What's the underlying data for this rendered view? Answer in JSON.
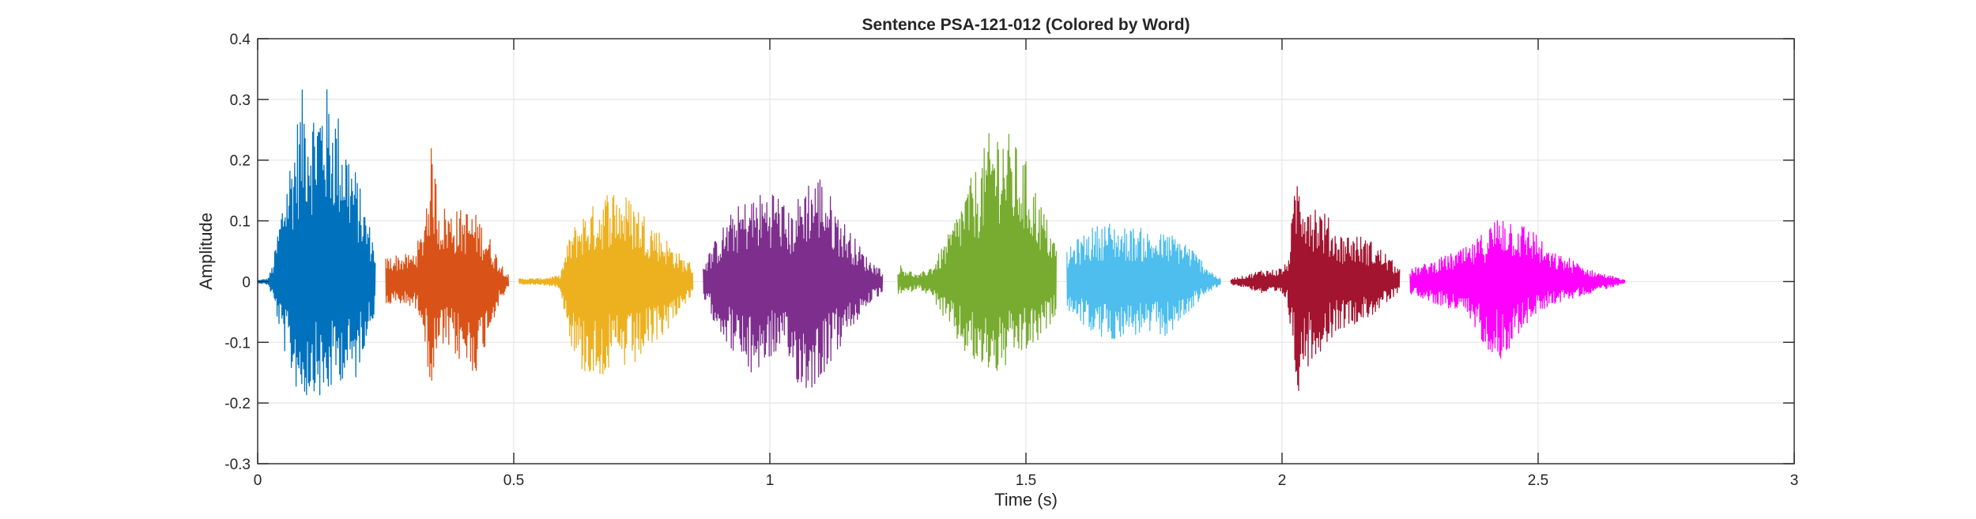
{
  "chart_data": {
    "type": "line",
    "title": "Sentence PSA-121-012 (Colored by Word)",
    "xlabel": "Time (s)",
    "ylabel": "Amplitude",
    "xlim": [
      0,
      3
    ],
    "ylim": [
      -0.3,
      0.4
    ],
    "xticks": [
      0,
      0.5,
      1,
      1.5,
      2,
      2.5,
      3
    ],
    "xtick_labels": [
      "0",
      "0.5",
      "1",
      "1.5",
      "2",
      "2.5",
      "3"
    ],
    "yticks": [
      -0.3,
      -0.2,
      -0.1,
      0,
      0.1,
      0.2,
      0.3,
      0.4
    ],
    "ytick_labels": [
      "-0.3",
      "-0.2",
      "-0.1",
      "0",
      "0.1",
      "0.2",
      "0.3",
      "0.4"
    ],
    "grid": true,
    "legend": "none",
    "series": [
      {
        "color": "#0072BD",
        "x": [
          0.0,
          0.02,
          0.03,
          0.05,
          0.07,
          0.09,
          0.11,
          0.13,
          0.15,
          0.17,
          0.19,
          0.21,
          0.23
        ],
        "env_upper": [
          0.002,
          0.005,
          0.03,
          0.15,
          0.24,
          0.33,
          0.3,
          0.33,
          0.3,
          0.25,
          0.19,
          0.12,
          0.06
        ],
        "env_lower": [
          -0.002,
          -0.005,
          -0.03,
          -0.11,
          -0.17,
          -0.2,
          -0.18,
          -0.21,
          -0.17,
          -0.16,
          -0.17,
          -0.1,
          -0.05
        ]
      },
      {
        "color": "#D95319",
        "x": [
          0.25,
          0.27,
          0.3,
          0.32,
          0.34,
          0.355,
          0.38,
          0.41,
          0.43,
          0.45,
          0.47,
          0.49
        ],
        "env_upper": [
          0.04,
          0.045,
          0.045,
          0.08,
          0.23,
          0.13,
          0.12,
          0.12,
          0.11,
          0.08,
          0.04,
          0.01
        ],
        "env_lower": [
          -0.04,
          -0.04,
          -0.04,
          -0.06,
          -0.19,
          -0.11,
          -0.12,
          -0.15,
          -0.15,
          -0.09,
          -0.04,
          -0.01
        ]
      },
      {
        "color": "#EDB120",
        "x": [
          0.51,
          0.55,
          0.59,
          0.61,
          0.63,
          0.66,
          0.69,
          0.71,
          0.74,
          0.77,
          0.8,
          0.83,
          0.85
        ],
        "env_upper": [
          0.005,
          0.005,
          0.01,
          0.08,
          0.11,
          0.13,
          0.16,
          0.15,
          0.13,
          0.1,
          0.07,
          0.04,
          0.03
        ],
        "env_lower": [
          -0.005,
          -0.005,
          -0.01,
          -0.1,
          -0.15,
          -0.16,
          -0.15,
          -0.15,
          -0.14,
          -0.11,
          -0.08,
          -0.04,
          -0.03
        ]
      },
      {
        "color": "#7E2F8E",
        "x": [
          0.87,
          0.9,
          0.93,
          0.96,
          0.99,
          1.01,
          1.04,
          1.07,
          1.1,
          1.13,
          1.16,
          1.19,
          1.22
        ],
        "env_upper": [
          0.03,
          0.08,
          0.12,
          0.14,
          0.15,
          0.16,
          0.11,
          0.17,
          0.18,
          0.12,
          0.08,
          0.04,
          0.02
        ],
        "env_lower": [
          -0.03,
          -0.08,
          -0.12,
          -0.16,
          -0.14,
          -0.12,
          -0.15,
          -0.19,
          -0.16,
          -0.12,
          -0.08,
          -0.04,
          -0.02
        ]
      },
      {
        "color": "#77AC30",
        "x": [
          1.25,
          1.27,
          1.29,
          1.32,
          1.35,
          1.38,
          1.41,
          1.43,
          1.45,
          1.47,
          1.5,
          1.53,
          1.56
        ],
        "env_upper": [
          0.03,
          0.02,
          0.01,
          0.03,
          0.08,
          0.15,
          0.2,
          0.25,
          0.27,
          0.24,
          0.2,
          0.13,
          0.06
        ],
        "env_lower": [
          -0.02,
          -0.02,
          -0.01,
          -0.03,
          -0.08,
          -0.12,
          -0.15,
          -0.15,
          -0.16,
          -0.13,
          -0.12,
          -0.1,
          -0.05
        ]
      },
      {
        "color": "#4DBEEE",
        "x": [
          1.58,
          1.6,
          1.63,
          1.66,
          1.69,
          1.72,
          1.75,
          1.78,
          1.81,
          1.84,
          1.87,
          1.88
        ],
        "env_upper": [
          0.05,
          0.07,
          0.09,
          0.1,
          0.09,
          0.09,
          0.08,
          0.08,
          0.07,
          0.04,
          0.01,
          0.005
        ],
        "env_lower": [
          -0.05,
          -0.06,
          -0.09,
          -0.1,
          -0.09,
          -0.09,
          -0.09,
          -0.09,
          -0.06,
          -0.03,
          -0.01,
          -0.005
        ]
      },
      {
        "color": "#A2142F",
        "x": [
          1.9,
          1.93,
          1.96,
          1.99,
          2.01,
          2.03,
          2.04,
          2.06,
          2.08,
          2.11,
          2.14,
          2.17,
          2.2,
          2.23
        ],
        "env_upper": [
          0.005,
          0.01,
          0.02,
          0.02,
          0.03,
          0.19,
          0.17,
          0.14,
          0.12,
          0.08,
          0.08,
          0.07,
          0.05,
          0.02
        ],
        "env_lower": [
          -0.005,
          -0.01,
          -0.02,
          -0.02,
          -0.03,
          -0.19,
          -0.15,
          -0.13,
          -0.11,
          -0.08,
          -0.07,
          -0.06,
          -0.04,
          -0.02
        ]
      },
      {
        "color": "#FF00FF",
        "x": [
          2.25,
          2.28,
          2.31,
          2.34,
          2.37,
          2.4,
          2.43,
          2.46,
          2.49,
          2.52,
          2.56,
          2.6,
          2.64,
          2.67
        ],
        "env_upper": [
          0.02,
          0.03,
          0.04,
          0.05,
          0.06,
          0.09,
          0.12,
          0.1,
          0.09,
          0.05,
          0.04,
          0.02,
          0.01,
          0.002
        ],
        "env_lower": [
          -0.02,
          -0.03,
          -0.04,
          -0.05,
          -0.07,
          -0.11,
          -0.13,
          -0.09,
          -0.06,
          -0.04,
          -0.03,
          -0.02,
          -0.01,
          -0.002
        ]
      }
    ]
  }
}
